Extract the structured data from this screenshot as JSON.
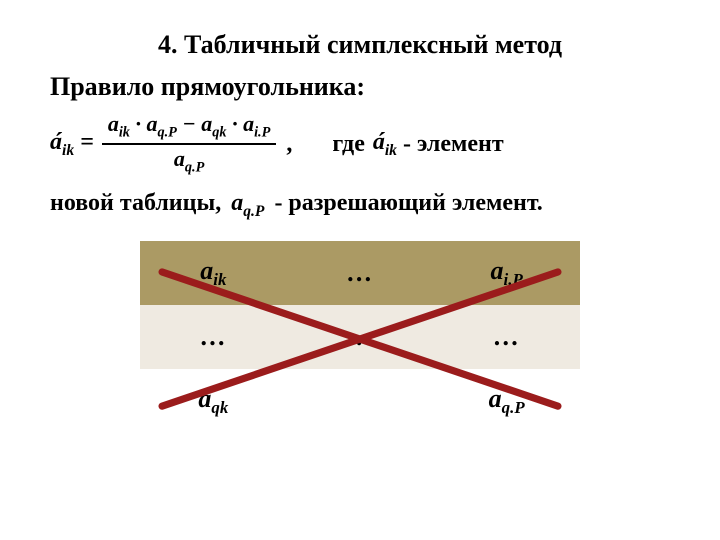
{
  "title": "4. Табличный симплексный метод",
  "subtitle": "Правило прямоугольника:",
  "formula": {
    "lhs": "á<sub>ik</sub> =",
    "numerator": "a<sub>ik</sub> · a<sub>q.P</sub> − a<sub>qk</sub> · a<sub>i.P</sub>",
    "denominator": "a<sub>q.P</sub>",
    "comma": ","
  },
  "text": {
    "where": "где",
    "aik": "á<sub>ik</sub>",
    "element": " - элемент",
    "line2_a": "новой таблицы, ",
    "aqp": "a<sub>q.P</sub>",
    "line2_b": " - разрешающий элемент."
  },
  "table": {
    "rows": [
      [
        "a<sub>ik</sub>",
        "…",
        "a<sub>i.P</sub>"
      ],
      [
        "…",
        "…",
        "…"
      ],
      [
        "a<sub>qk</sub>",
        "",
        "a<sub>q.P</sub>"
      ]
    ],
    "row_colors": [
      "#ab9a64",
      "#efeae1",
      "#ffffff"
    ],
    "cell_fontsize": 26
  },
  "cross": {
    "stroke": "#9b1c1c",
    "stroke_width": 7,
    "x1a": 22,
    "y1a": 30,
    "x2a": 418,
    "y2a": 160,
    "x1b": 22,
    "y1b": 160,
    "x2b": 418,
    "y2b": 30
  }
}
